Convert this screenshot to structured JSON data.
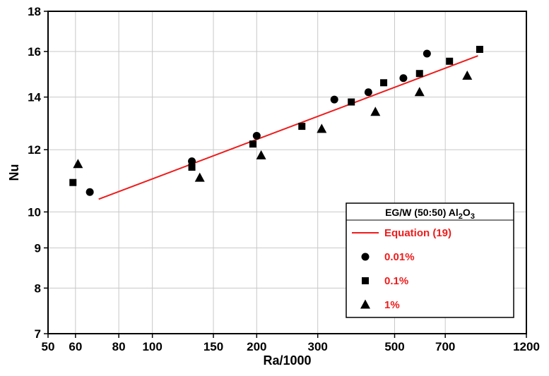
{
  "chart_data": {
    "type": "scatter",
    "xscale": "log",
    "yscale": "log",
    "xlabel": "Ra/1000",
    "ylabel": "Nu",
    "xlim": [
      50,
      1200
    ],
    "ylim": [
      7,
      18
    ],
    "grid": true,
    "legend_position": "bottom-right",
    "x_ticks": [
      50,
      60,
      80,
      100,
      150,
      200,
      300,
      500,
      700,
      1200
    ],
    "y_ticks": [
      7,
      8,
      9,
      10,
      12,
      14,
      16,
      18
    ],
    "legend": {
      "title_main": "EG/W (50:50) Al",
      "title_sub1": "2",
      "title_mid": "O",
      "title_sub2": "3"
    },
    "line": {
      "name": "Equation (19)",
      "color": "#ee1c1c",
      "x": [
        70,
        870
      ],
      "y": [
        10.38,
        15.8
      ]
    },
    "series": [
      {
        "name": "0.01%",
        "marker": "circle",
        "color": "#000000",
        "x": [
          66,
          130,
          200,
          335,
          420,
          530,
          620
        ],
        "y": [
          10.6,
          11.6,
          12.5,
          13.9,
          14.2,
          14.8,
          15.9
        ]
      },
      {
        "name": "0.1%",
        "marker": "square",
        "color": "#000000",
        "x": [
          59,
          130,
          195,
          270,
          375,
          465,
          590,
          720,
          880
        ],
        "y": [
          10.9,
          11.4,
          12.2,
          12.85,
          13.8,
          14.6,
          15.0,
          15.55,
          16.1
        ]
      },
      {
        "name": "1%",
        "marker": "triangle",
        "color": "#000000",
        "x": [
          61,
          137,
          206,
          308,
          440,
          590,
          810
        ],
        "y": [
          11.5,
          11.05,
          11.8,
          12.75,
          13.4,
          14.2,
          14.9
        ]
      }
    ]
  }
}
